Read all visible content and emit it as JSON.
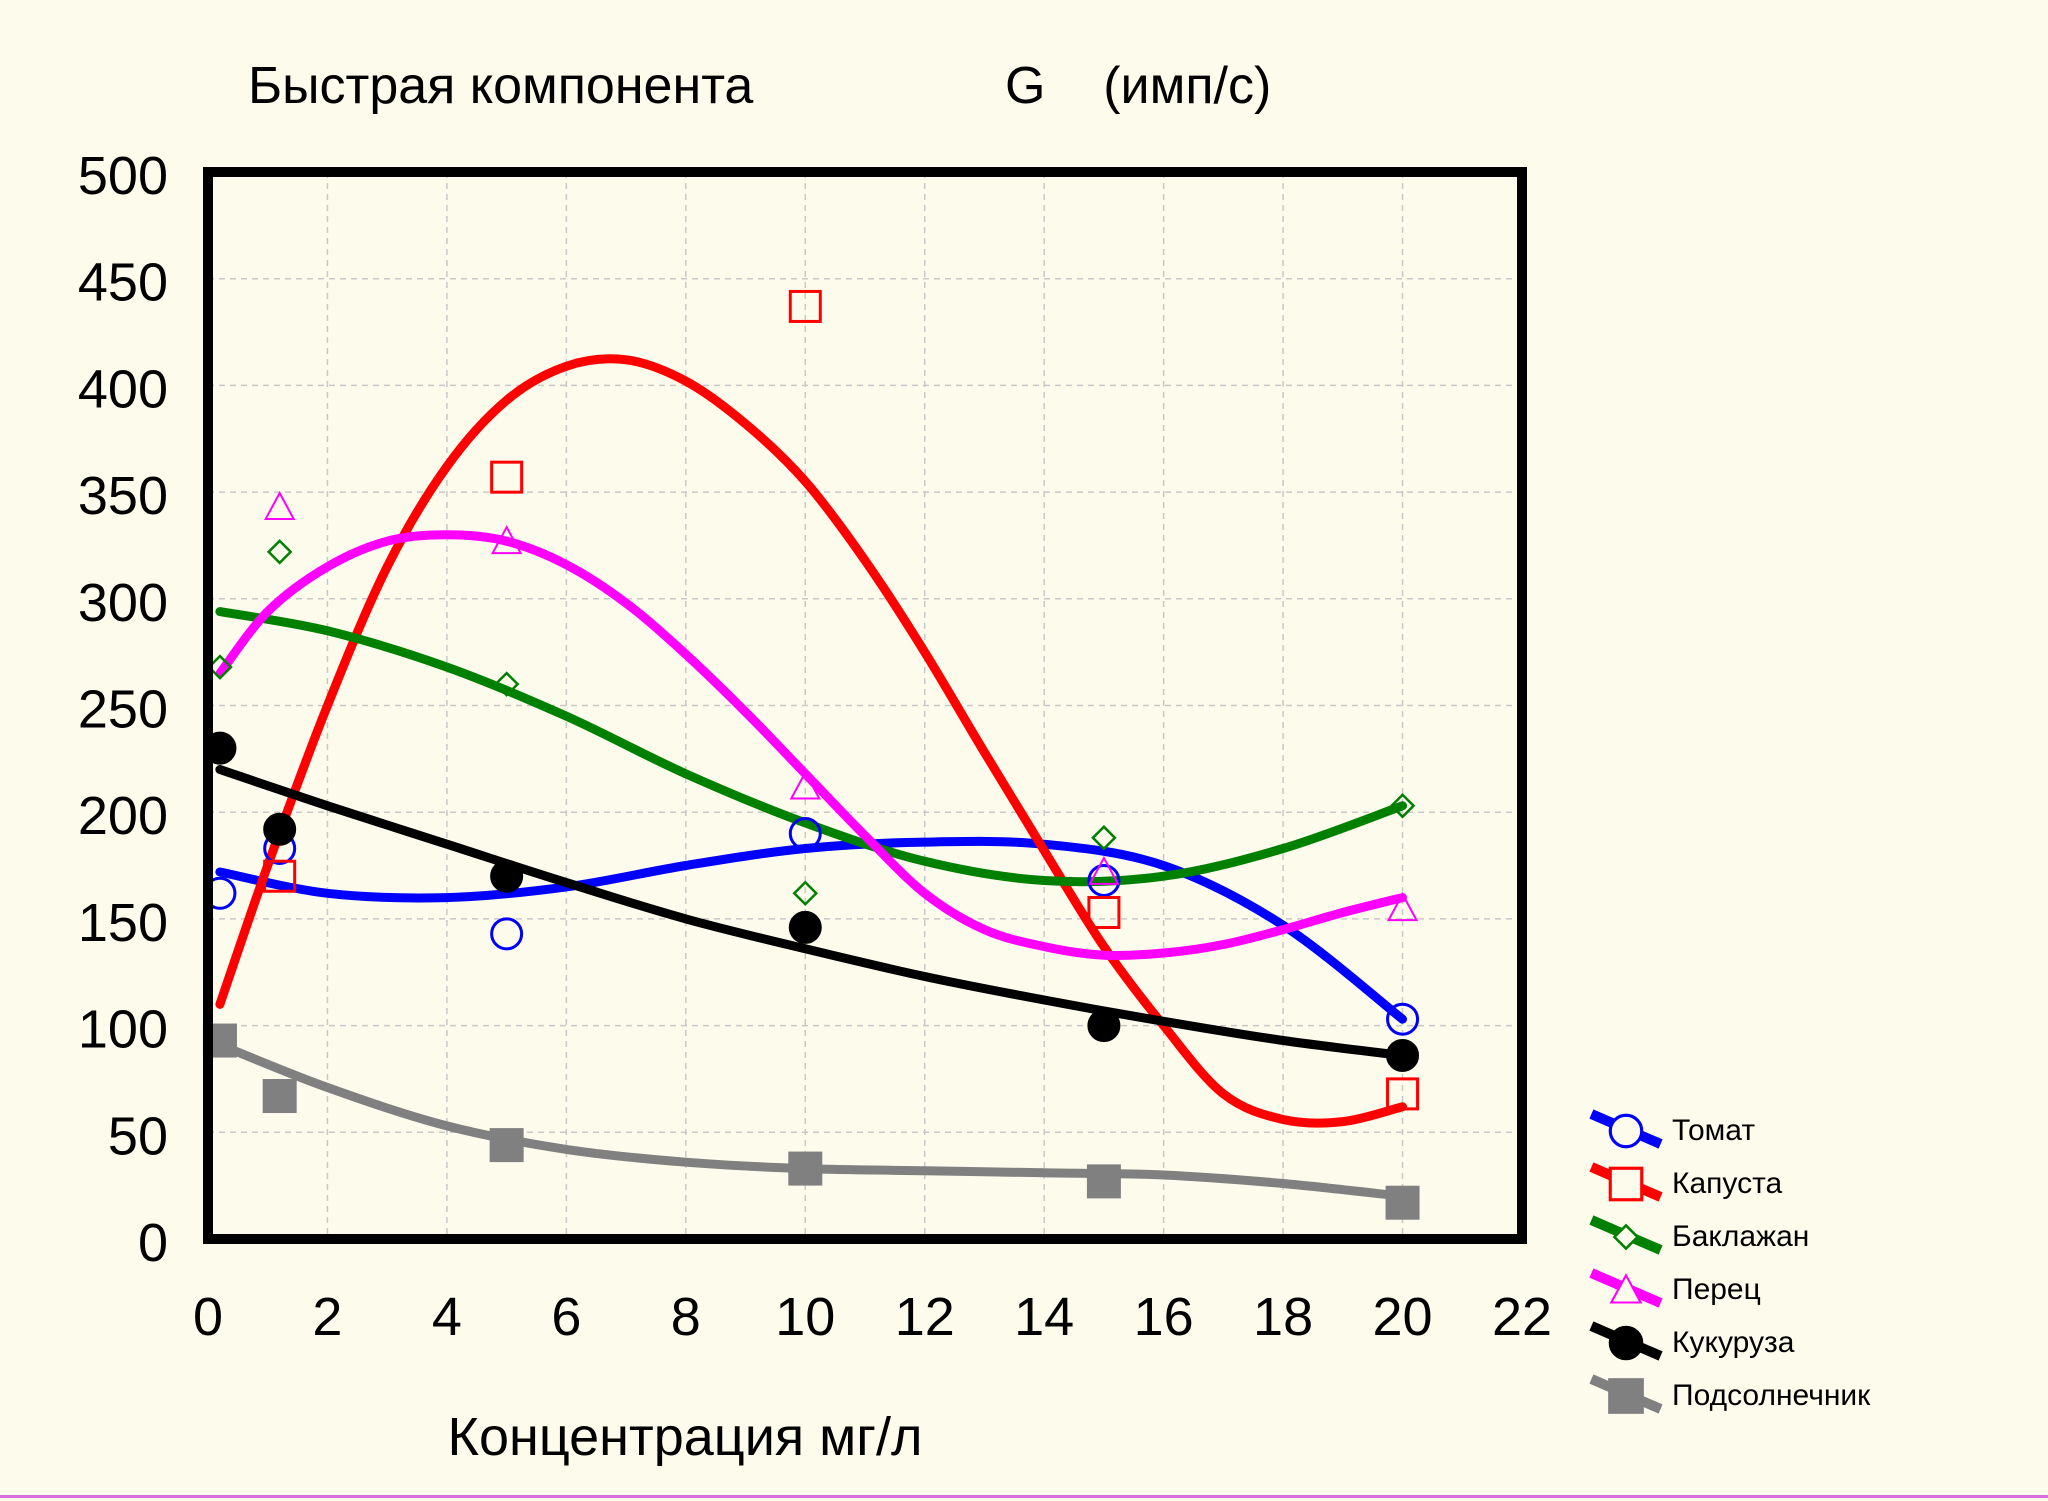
{
  "chart_data": {
    "type": "scatter",
    "title": "Быстрая компонента",
    "subtitle": "G    (имп/с)",
    "xlabel": "Концентрация мг/л",
    "ylabel": "",
    "xlim": [
      0,
      22
    ],
    "ylim": [
      0,
      500
    ],
    "x_ticks": [
      "0",
      "2",
      "4",
      "6",
      "8",
      "10",
      "12",
      "14",
      "16",
      "18",
      "20",
      "22"
    ],
    "y_ticks": [
      "0",
      "50",
      "100",
      "150",
      "200",
      "250",
      "300",
      "350",
      "400",
      "450",
      "500"
    ],
    "grid": true,
    "legend_position": "right",
    "series": [
      {
        "name": "Томат",
        "color": "#0000ff",
        "marker": "circle-open",
        "x": [
          0.2,
          1.2,
          5.0,
          10.0,
          15.0,
          20.0
        ],
        "y": [
          162,
          183,
          143,
          190,
          168,
          103
        ],
        "fit": [
          [
            0.2,
            172
          ],
          [
            2,
            162
          ],
          [
            4,
            160
          ],
          [
            6,
            165
          ],
          [
            8,
            175
          ],
          [
            10,
            183
          ],
          [
            12,
            186
          ],
          [
            14,
            185
          ],
          [
            16,
            175
          ],
          [
            18,
            147
          ],
          [
            20,
            103
          ]
        ]
      },
      {
        "name": "Капуста",
        "color": "#ff0000",
        "marker": "square-open",
        "x": [
          1.2,
          5.0,
          10.0,
          15.0,
          20.0
        ],
        "y": [
          170,
          357,
          437,
          153,
          68
        ],
        "fit": [
          [
            0.2,
            110
          ],
          [
            1,
            175
          ],
          [
            2,
            250
          ],
          [
            3,
            315
          ],
          [
            4,
            362
          ],
          [
            5,
            393
          ],
          [
            6,
            409
          ],
          [
            7,
            412
          ],
          [
            8,
            402
          ],
          [
            9,
            382
          ],
          [
            10,
            355
          ],
          [
            11,
            318
          ],
          [
            12,
            275
          ],
          [
            13,
            228
          ],
          [
            14,
            182
          ],
          [
            15,
            137
          ],
          [
            16,
            100
          ],
          [
            17,
            68
          ],
          [
            18,
            56
          ],
          [
            19,
            55
          ],
          [
            20,
            62
          ]
        ]
      },
      {
        "name": "Баклажан",
        "color": "#008000",
        "marker": "diamond-open",
        "x": [
          0.2,
          1.2,
          5.0,
          10.0,
          15.0,
          20.0
        ],
        "y": [
          268,
          322,
          260,
          162,
          188,
          203
        ],
        "fit": [
          [
            0.2,
            294
          ],
          [
            2,
            285
          ],
          [
            4,
            268
          ],
          [
            6,
            245
          ],
          [
            8,
            218
          ],
          [
            10,
            195
          ],
          [
            12,
            177
          ],
          [
            14,
            168
          ],
          [
            16,
            170
          ],
          [
            18,
            183
          ],
          [
            20,
            203
          ]
        ]
      },
      {
        "name": "Перец",
        "color": "#ff00ff",
        "marker": "triangle-open",
        "x": [
          1.2,
          5.0,
          10.0,
          15.0,
          20.0
        ],
        "y": [
          343,
          327,
          212,
          172,
          155
        ],
        "fit": [
          [
            0.2,
            265
          ],
          [
            1,
            294
          ],
          [
            2,
            315
          ],
          [
            3,
            327
          ],
          [
            4,
            330
          ],
          [
            5,
            327
          ],
          [
            6,
            316
          ],
          [
            7,
            298
          ],
          [
            8,
            274
          ],
          [
            9,
            247
          ],
          [
            10,
            218
          ],
          [
            11,
            189
          ],
          [
            12,
            162
          ],
          [
            13,
            145
          ],
          [
            14,
            137
          ],
          [
            15,
            133
          ],
          [
            16,
            134
          ],
          [
            17,
            138
          ],
          [
            18,
            145
          ],
          [
            19,
            153
          ],
          [
            20,
            160
          ]
        ]
      },
      {
        "name": "Кукуруза",
        "color": "#000000",
        "marker": "circle-filled",
        "x": [
          0.2,
          1.2,
          5.0,
          10.0,
          15.0,
          20.0
        ],
        "y": [
          230,
          192,
          170,
          146,
          100,
          86
        ],
        "fit": [
          [
            0.2,
            220
          ],
          [
            2,
            203
          ],
          [
            4,
            185
          ],
          [
            6,
            167
          ],
          [
            8,
            150
          ],
          [
            10,
            136
          ],
          [
            12,
            123
          ],
          [
            14,
            112
          ],
          [
            16,
            102
          ],
          [
            18,
            93
          ],
          [
            20,
            86
          ]
        ]
      },
      {
        "name": "Подсолнечник",
        "color": "#808080",
        "marker": "square-filled",
        "x": [
          0.2,
          1.2,
          5.0,
          10.0,
          15.0,
          20.0
        ],
        "y": [
          93,
          67,
          44,
          33,
          27,
          17
        ],
        "fit": [
          [
            0.2,
            91
          ],
          [
            2,
            71
          ],
          [
            4,
            53
          ],
          [
            6,
            42
          ],
          [
            8,
            36
          ],
          [
            10,
            33
          ],
          [
            12,
            32
          ],
          [
            14,
            31
          ],
          [
            16,
            30
          ],
          [
            18,
            26
          ],
          [
            20,
            20
          ]
        ]
      }
    ]
  }
}
